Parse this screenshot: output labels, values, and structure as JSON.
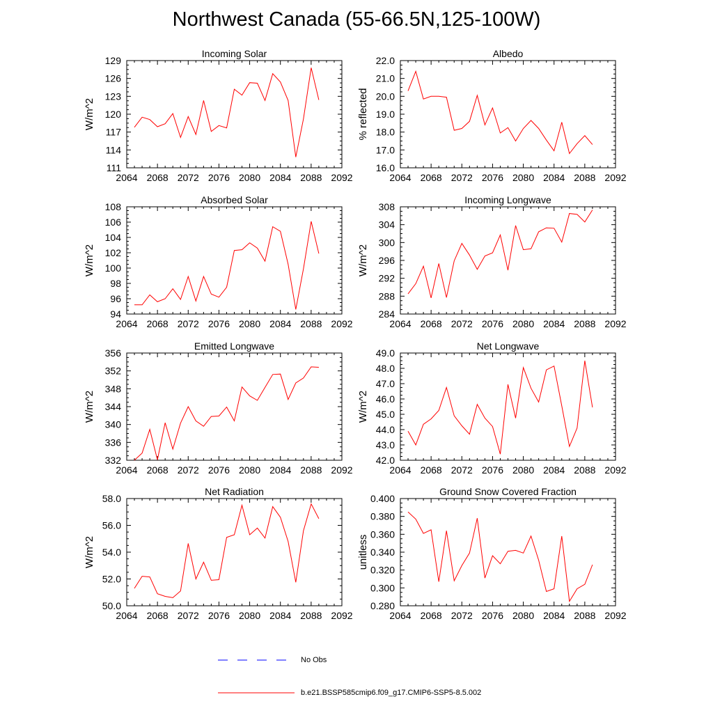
{
  "title": "Northwest Canada (55-66.5N,125-100W)",
  "legend": {
    "obs_label": "No Obs",
    "obs_color": "#0000ff",
    "model_label": "b.e21.BSSP585cmip6.f09_g17.CMIP6-SSP5-8.5.002",
    "model_color": "#ff0000"
  },
  "chart_data": [
    {
      "type": "line",
      "title": "Incoming Solar",
      "ylabel": "W/m^2",
      "xlim": [
        2064,
        2092
      ],
      "ylim": [
        111,
        129
      ],
      "xticks": [
        2064,
        2068,
        2072,
        2076,
        2080,
        2084,
        2088,
        2092
      ],
      "yticks": [
        "111",
        "114",
        "117",
        "120",
        "123",
        "126",
        "129"
      ],
      "x": [
        2065,
        2066,
        2067,
        2068,
        2069,
        2070,
        2071,
        2072,
        2073,
        2074,
        2075,
        2076,
        2077,
        2078,
        2079,
        2080,
        2081,
        2082,
        2083,
        2084,
        2085,
        2086,
        2087,
        2088,
        2089
      ],
      "series": [
        {
          "values": [
            117.8,
            119.5,
            119.1,
            117.9,
            118.4,
            120.1,
            116.1,
            119.6,
            116.6,
            122.3,
            117.1,
            118.1,
            117.7,
            124.2,
            123.2,
            125.3,
            125.2,
            122.3,
            126.8,
            125.4,
            122.3,
            112.8,
            119.2,
            127.8,
            122.4
          ]
        }
      ]
    },
    {
      "type": "line",
      "title": "Albedo",
      "ylabel": "% reflected",
      "xlim": [
        2064,
        2092
      ],
      "ylim": [
        16.0,
        22.0
      ],
      "xticks": [
        2064,
        2068,
        2072,
        2076,
        2080,
        2084,
        2088,
        2092
      ],
      "yticks": [
        "16.0",
        "17.0",
        "18.0",
        "19.0",
        "20.0",
        "21.0",
        "22.0"
      ],
      "x": [
        2065,
        2066,
        2067,
        2068,
        2069,
        2070,
        2071,
        2072,
        2073,
        2074,
        2075,
        2076,
        2077,
        2078,
        2079,
        2080,
        2081,
        2082,
        2083,
        2084,
        2085,
        2086,
        2087,
        2088,
        2089
      ],
      "series": [
        {
          "values": [
            20.3,
            21.4,
            19.85,
            20.0,
            20.0,
            19.95,
            18.1,
            18.2,
            18.6,
            20.05,
            18.4,
            19.35,
            17.95,
            18.25,
            17.5,
            18.2,
            18.65,
            18.2,
            17.55,
            16.95,
            18.55,
            16.8,
            17.35,
            17.8,
            17.3
          ]
        }
      ]
    },
    {
      "type": "line",
      "title": "Absorbed Solar",
      "ylabel": "W/m^2",
      "xlim": [
        2064,
        2092
      ],
      "ylim": [
        94,
        108
      ],
      "xticks": [
        2064,
        2068,
        2072,
        2076,
        2080,
        2084,
        2088,
        2092
      ],
      "yticks": [
        "94",
        "96",
        "98",
        "100",
        "102",
        "104",
        "106",
        "108"
      ],
      "x": [
        2065,
        2066,
        2067,
        2068,
        2069,
        2070,
        2071,
        2072,
        2073,
        2074,
        2075,
        2076,
        2077,
        2078,
        2079,
        2080,
        2081,
        2082,
        2083,
        2084,
        2085,
        2086,
        2087,
        2088,
        2089
      ],
      "series": [
        {
          "values": [
            95.2,
            95.2,
            96.5,
            95.6,
            96.0,
            97.3,
            95.9,
            98.9,
            95.7,
            98.9,
            96.6,
            96.2,
            97.5,
            102.3,
            102.4,
            103.3,
            102.6,
            100.9,
            105.4,
            104.8,
            100.5,
            94.6,
            99.9,
            106.1,
            101.9
          ]
        }
      ]
    },
    {
      "type": "line",
      "title": "Incoming Longwave",
      "ylabel": "W/m^2",
      "xlim": [
        2064,
        2092
      ],
      "ylim": [
        284,
        308
      ],
      "xticks": [
        2064,
        2068,
        2072,
        2076,
        2080,
        2084,
        2088,
        2092
      ],
      "yticks": [
        "284",
        "288",
        "292",
        "296",
        "300",
        "304",
        "308"
      ],
      "x": [
        2065,
        2066,
        2067,
        2068,
        2069,
        2070,
        2071,
        2072,
        2073,
        2074,
        2075,
        2076,
        2077,
        2078,
        2079,
        2080,
        2081,
        2082,
        2083,
        2084,
        2085,
        2086,
        2087,
        2088,
        2089
      ],
      "series": [
        {
          "values": [
            288.5,
            290.8,
            294.7,
            287.6,
            295.3,
            287.7,
            295.9,
            299.8,
            297.2,
            294.0,
            297.0,
            297.7,
            301.7,
            293.8,
            303.8,
            298.4,
            298.6,
            302.4,
            303.3,
            303.2,
            300.1,
            306.5,
            306.3,
            304.6,
            307.3
          ]
        }
      ]
    },
    {
      "type": "line",
      "title": "Emitted Longwave",
      "ylabel": "W/m^2",
      "xlim": [
        2064,
        2092
      ],
      "ylim": [
        332,
        356
      ],
      "xticks": [
        2064,
        2068,
        2072,
        2076,
        2080,
        2084,
        2088,
        2092
      ],
      "yticks": [
        "332",
        "336",
        "340",
        "344",
        "348",
        "352",
        "356"
      ],
      "x": [
        2065,
        2066,
        2067,
        2068,
        2069,
        2070,
        2071,
        2072,
        2073,
        2074,
        2075,
        2076,
        2077,
        2078,
        2079,
        2080,
        2081,
        2082,
        2083,
        2084,
        2085,
        2086,
        2087,
        2088,
        2089
      ],
      "series": [
        {
          "values": [
            332.0,
            333.6,
            338.9,
            332.1,
            340.4,
            334.5,
            340.3,
            344.0,
            340.8,
            339.6,
            341.8,
            341.9,
            343.9,
            340.8,
            348.4,
            346.4,
            345.4,
            348.3,
            351.2,
            351.3,
            345.6,
            349.3,
            350.4,
            352.9,
            352.8
          ]
        }
      ]
    },
    {
      "type": "line",
      "title": "Net Longwave",
      "ylabel": "W/m^2",
      "xlim": [
        2064,
        2092
      ],
      "ylim": [
        42.0,
        49.0
      ],
      "xticks": [
        2064,
        2068,
        2072,
        2076,
        2080,
        2084,
        2088,
        2092
      ],
      "yticks": [
        "42.0",
        "43.0",
        "44.0",
        "45.0",
        "46.0",
        "47.0",
        "48.0",
        "49.0"
      ],
      "x": [
        2065,
        2066,
        2067,
        2068,
        2069,
        2070,
        2071,
        2072,
        2073,
        2074,
        2075,
        2076,
        2077,
        2078,
        2079,
        2080,
        2081,
        2082,
        2083,
        2084,
        2085,
        2086,
        2087,
        2088,
        2089
      ],
      "series": [
        {
          "values": [
            43.9,
            43.0,
            44.35,
            44.7,
            45.25,
            46.75,
            44.9,
            44.25,
            43.7,
            45.65,
            44.75,
            44.2,
            42.4,
            46.95,
            44.75,
            48.05,
            46.7,
            45.8,
            47.9,
            48.15,
            45.55,
            42.9,
            44.1,
            48.5,
            45.45
          ]
        }
      ]
    },
    {
      "type": "line",
      "title": "Net Radiation",
      "ylabel": "W/m^2",
      "xlim": [
        2064,
        2092
      ],
      "ylim": [
        50.0,
        58.0
      ],
      "xticks": [
        2064,
        2068,
        2072,
        2076,
        2080,
        2084,
        2088,
        2092
      ],
      "yticks": [
        "50.0",
        "52.0",
        "54.0",
        "56.0",
        "58.0"
      ],
      "x": [
        2065,
        2066,
        2067,
        2068,
        2069,
        2070,
        2071,
        2072,
        2073,
        2074,
        2075,
        2076,
        2077,
        2078,
        2079,
        2080,
        2081,
        2082,
        2083,
        2084,
        2085,
        2086,
        2087,
        2088,
        2089
      ],
      "series": [
        {
          "values": [
            51.3,
            52.2,
            52.15,
            50.9,
            50.7,
            50.6,
            51.1,
            54.65,
            52.0,
            53.25,
            51.9,
            51.95,
            55.1,
            55.3,
            57.5,
            55.3,
            55.8,
            55.05,
            57.4,
            56.6,
            54.8,
            51.75,
            55.6,
            57.6,
            56.5
          ]
        }
      ]
    },
    {
      "type": "line",
      "title": "Ground Snow Covered Fraction",
      "ylabel": "unitless",
      "xlim": [
        2064,
        2092
      ],
      "ylim": [
        0.28,
        0.4
      ],
      "xticks": [
        2064,
        2068,
        2072,
        2076,
        2080,
        2084,
        2088,
        2092
      ],
      "yticks": [
        "0.280",
        "0.300",
        "0.320",
        "0.340",
        "0.360",
        "0.380",
        "0.400"
      ],
      "x": [
        2065,
        2066,
        2067,
        2068,
        2069,
        2070,
        2071,
        2072,
        2073,
        2074,
        2075,
        2076,
        2077,
        2078,
        2079,
        2080,
        2081,
        2082,
        2083,
        2084,
        2085,
        2086,
        2087,
        2088,
        2089
      ],
      "series": [
        {
          "values": [
            0.385,
            0.377,
            0.361,
            0.365,
            0.307,
            0.364,
            0.308,
            0.325,
            0.339,
            0.378,
            0.311,
            0.336,
            0.327,
            0.341,
            0.342,
            0.339,
            0.358,
            0.331,
            0.296,
            0.299,
            0.358,
            0.285,
            0.299,
            0.304,
            0.326
          ]
        }
      ]
    }
  ]
}
